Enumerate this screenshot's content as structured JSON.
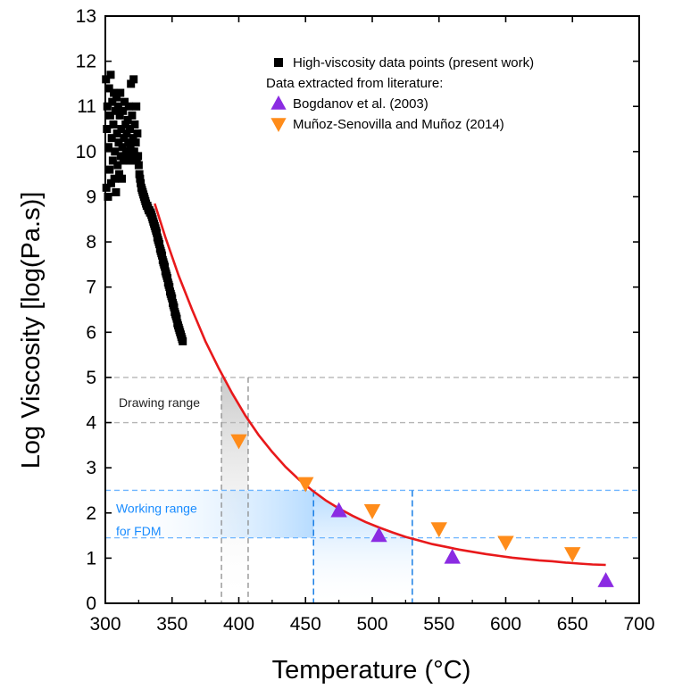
{
  "chart_data": {
    "type": "scatter",
    "xlabel": "Temperature (°C)",
    "ylabel": "Log Viscosity [log(Pa.s)]",
    "xlim": [
      300,
      700
    ],
    "ylim": [
      0,
      13
    ],
    "xticks": [
      300,
      350,
      400,
      450,
      500,
      550,
      600,
      650,
      700
    ],
    "yticks": [
      0,
      1,
      2,
      3,
      4,
      5,
      6,
      7,
      8,
      9,
      10,
      11,
      12,
      13
    ],
    "grid": false,
    "legend_position": "top-right",
    "legend": {
      "items": [
        {
          "label": "High-viscosity data points (present work)",
          "marker": "square",
          "color": "#000000"
        },
        {
          "label": "Data extracted from literature:",
          "marker": "none",
          "color": "#000000"
        },
        {
          "label": "Bogdanov et al. (2003)",
          "marker": "triangle-up",
          "color": "#8B2BE2"
        },
        {
          "label": "Muñoz-Senovilla and Muñoz (2014)",
          "marker": "triangle-down",
          "color": "#FF8C1A"
        }
      ]
    },
    "series": [
      {
        "name": "High-viscosity data points (present work)",
        "marker": "square",
        "color": "#000000",
        "points": [
          [
            300.5,
            11.6
          ],
          [
            300.8,
            9.2
          ],
          [
            301.2,
            10.5
          ],
          [
            301.5,
            11.0
          ],
          [
            302,
            9.0
          ],
          [
            302.3,
            10.1
          ],
          [
            302.8,
            11.4
          ],
          [
            303.2,
            9.6
          ],
          [
            303.6,
            10.8
          ],
          [
            304,
            11.7
          ],
          [
            304.3,
            9.3
          ],
          [
            304.8,
            10.3
          ],
          [
            305.2,
            11.1
          ],
          [
            305.6,
            9.8
          ],
          [
            306,
            10.6
          ],
          [
            306.4,
            11.3
          ],
          [
            306.8,
            9.4
          ],
          [
            307.2,
            10.0
          ],
          [
            307.6,
            10.9
          ],
          [
            308,
            9.1
          ],
          [
            308.4,
            11.2
          ],
          [
            308.8,
            10.4
          ],
          [
            309.2,
            9.7
          ],
          [
            309.6,
            11.0
          ],
          [
            310,
            10.2
          ],
          [
            310.4,
            9.5
          ],
          [
            310.8,
            10.8
          ],
          [
            311.2,
            11.3
          ],
          [
            311.6,
            9.9
          ],
          [
            312,
            10.5
          ],
          [
            312.4,
            9.4
          ],
          [
            312.8,
            10.1
          ],
          [
            313.2,
            10.9
          ],
          [
            313.6,
            9.8
          ],
          [
            314,
            10.3
          ],
          [
            314.4,
            11.1
          ],
          [
            314.8,
            9.9
          ],
          [
            315.2,
            10.6
          ],
          [
            315.6,
            10.0
          ],
          [
            316,
            10.4
          ],
          [
            316.4,
            9.9
          ],
          [
            316.8,
            10.7
          ],
          [
            317.2,
            10.2
          ],
          [
            317.6,
            11.0
          ],
          [
            318,
            9.8
          ],
          [
            318.4,
            10.5
          ],
          [
            318.8,
            10.1
          ],
          [
            319.2,
            11.5
          ],
          [
            319.6,
            10.0
          ],
          [
            320,
            10.8
          ],
          [
            320.4,
            9.8
          ],
          [
            320.8,
            10.3
          ],
          [
            321.2,
            11.6
          ],
          [
            321.6,
            10.0
          ],
          [
            322,
            10.6
          ],
          [
            322.4,
            9.9
          ],
          [
            322.8,
            10.2
          ],
          [
            323.2,
            11.0
          ],
          [
            323.6,
            9.8
          ],
          [
            324,
            10.4
          ],
          [
            324.5,
            9.9
          ],
          [
            325,
            9.7
          ],
          [
            325.5,
            9.5
          ],
          [
            326,
            9.4
          ],
          [
            326.5,
            9.3
          ],
          [
            327,
            9.2
          ],
          [
            327.5,
            9.15
          ],
          [
            328,
            9.1
          ],
          [
            328.5,
            9.05
          ],
          [
            329,
            9.0
          ],
          [
            329.5,
            8.95
          ],
          [
            330,
            8.9
          ],
          [
            330.5,
            8.85
          ],
          [
            331,
            8.8
          ],
          [
            331.5,
            8.8
          ],
          [
            332,
            8.75
          ],
          [
            332.5,
            8.7
          ],
          [
            333,
            8.7
          ],
          [
            333.5,
            8.65
          ],
          [
            334,
            8.65
          ],
          [
            334.5,
            8.6
          ],
          [
            335,
            8.55
          ],
          [
            335.5,
            8.5
          ],
          [
            336,
            8.45
          ],
          [
            336.5,
            8.4
          ],
          [
            337,
            8.35
          ],
          [
            337.5,
            8.3
          ],
          [
            338,
            8.25
          ],
          [
            338.5,
            8.2
          ],
          [
            339,
            8.1
          ],
          [
            339.5,
            8.05
          ],
          [
            340,
            8.0
          ],
          [
            340.5,
            7.95
          ],
          [
            341,
            7.85
          ],
          [
            341.5,
            7.8
          ],
          [
            342,
            7.75
          ],
          [
            342.5,
            7.7
          ],
          [
            343,
            7.6
          ],
          [
            343.5,
            7.55
          ],
          [
            344,
            7.5
          ],
          [
            344.5,
            7.45
          ],
          [
            345,
            7.35
          ],
          [
            345.5,
            7.3
          ],
          [
            346,
            7.25
          ],
          [
            346.5,
            7.2
          ],
          [
            347,
            7.1
          ],
          [
            347.5,
            7.05
          ],
          [
            348,
            7.0
          ],
          [
            348.5,
            6.9
          ],
          [
            349,
            6.85
          ],
          [
            349.5,
            6.8
          ],
          [
            350,
            6.75
          ],
          [
            350.5,
            6.65
          ],
          [
            351,
            6.6
          ],
          [
            351.5,
            6.55
          ],
          [
            352,
            6.45
          ],
          [
            352.5,
            6.4
          ],
          [
            353,
            6.35
          ],
          [
            353.5,
            6.3
          ],
          [
            354,
            6.2
          ],
          [
            354.5,
            6.15
          ],
          [
            355,
            6.1
          ],
          [
            355.5,
            6.05
          ],
          [
            356,
            6.0
          ],
          [
            356.5,
            5.95
          ],
          [
            357,
            5.9
          ],
          [
            357.5,
            5.85
          ],
          [
            358,
            5.8
          ]
        ]
      },
      {
        "name": "Bogdanov et al. (2003)",
        "marker": "triangle-up",
        "color": "#8B2BE2",
        "points": [
          [
            475,
            2.05
          ],
          [
            505,
            1.5
          ],
          [
            560,
            1.02
          ],
          [
            675,
            0.5
          ]
        ]
      },
      {
        "name": "Muñoz-Senovilla and Muñoz (2014)",
        "marker": "triangle-down",
        "color": "#FF8C1A",
        "points": [
          [
            400,
            3.6
          ],
          [
            450,
            2.65
          ],
          [
            500,
            2.05
          ],
          [
            550,
            1.65
          ],
          [
            600,
            1.35
          ],
          [
            650,
            1.1
          ]
        ]
      }
    ],
    "fit_curve": {
      "color": "#E8191B",
      "x": [
        337,
        345,
        355,
        365,
        375,
        385,
        395,
        405,
        415,
        425,
        435,
        445,
        455,
        465,
        475,
        485,
        495,
        505,
        515,
        525,
        535,
        545,
        555,
        565,
        575,
        585,
        595,
        605,
        615,
        625,
        635,
        645,
        655,
        665,
        675
      ],
      "y": [
        8.85,
        8.1,
        7.25,
        6.5,
        5.8,
        5.2,
        4.65,
        4.15,
        3.72,
        3.35,
        3.02,
        2.74,
        2.5,
        2.28,
        2.1,
        1.94,
        1.8,
        1.68,
        1.57,
        1.47,
        1.39,
        1.31,
        1.25,
        1.19,
        1.14,
        1.09,
        1.05,
        1.01,
        0.98,
        0.95,
        0.93,
        0.9,
        0.88,
        0.86,
        0.85
      ]
    },
    "reference_lines": {
      "horizontal_gray": [
        5.0,
        4.0
      ],
      "vertical_gray": [
        387,
        407
      ],
      "horizontal_blue": [
        2.5,
        1.45
      ],
      "vertical_blue": [
        456,
        530
      ]
    },
    "annotations": [
      {
        "text": "Drawing range",
        "x": 310,
        "y": 4.45,
        "color": "#222222"
      },
      {
        "text": "Working range",
        "x": 308,
        "y": 2.1,
        "color": "#1A8CFF"
      },
      {
        "text": "for FDM",
        "x": 308,
        "y": 1.6,
        "color": "#1A8CFF"
      }
    ]
  }
}
